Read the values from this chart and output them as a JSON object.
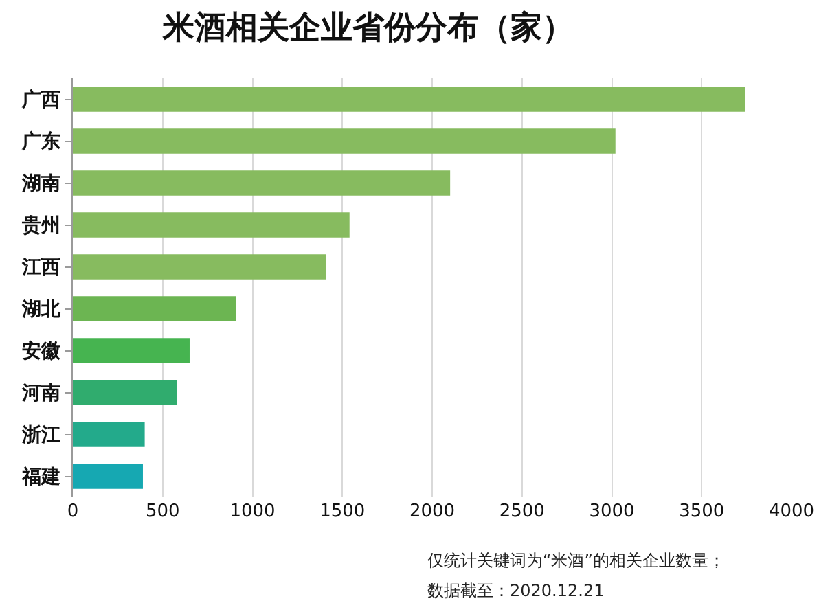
{
  "chart_data": {
    "type": "bar",
    "orientation": "horizontal",
    "title": "米酒相关企业省份分布（家）",
    "categories": [
      "广西",
      "广东",
      "湖南",
      "贵州",
      "江西",
      "湖北",
      "安徽",
      "河南",
      "浙江",
      "福建"
    ],
    "values": [
      3740,
      3020,
      2100,
      1540,
      1410,
      910,
      650,
      580,
      400,
      390
    ],
    "colors": [
      "#87bb5f",
      "#87bb5f",
      "#87bb5f",
      "#87bb5f",
      "#87bb5f",
      "#6cb552",
      "#46b450",
      "#30ac6e",
      "#23aa8b",
      "#16a8b2"
    ],
    "xlim": [
      0,
      4000
    ],
    "xticks": [
      0,
      500,
      1000,
      1500,
      2000,
      2500,
      3000,
      3500,
      4000
    ],
    "grid": "x",
    "annotations": [
      "仅统计关键词为“米酒”的相关企业数量；",
      "数据截至：2020.12.21"
    ]
  }
}
